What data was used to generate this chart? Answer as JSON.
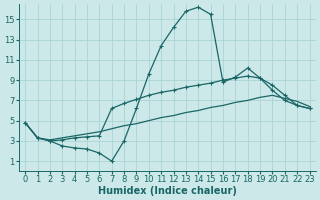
{
  "xlabel": "Humidex (Indice chaleur)",
  "xlim": [
    -0.5,
    23.5
  ],
  "ylim": [
    0,
    16.5
  ],
  "yticks": [
    1,
    3,
    5,
    7,
    9,
    11,
    13,
    15
  ],
  "xticks": [
    0,
    1,
    2,
    3,
    4,
    5,
    6,
    7,
    8,
    9,
    10,
    11,
    12,
    13,
    14,
    15,
    16,
    17,
    18,
    19,
    20,
    21,
    22,
    23
  ],
  "bg_color": "#cce8e8",
  "grid_color": "#aad4d4",
  "line_color": "#1a6666",
  "line1_x": [
    0,
    1,
    2,
    3,
    4,
    5,
    6,
    7,
    8,
    9,
    10,
    11,
    12,
    13,
    14,
    15,
    16,
    17,
    18,
    19,
    20,
    21,
    22,
    23
  ],
  "line1_y": [
    4.8,
    3.3,
    3.0,
    2.5,
    2.3,
    2.2,
    1.8,
    1.0,
    3.0,
    6.2,
    9.6,
    12.4,
    14.2,
    15.8,
    16.2,
    15.5,
    8.8,
    9.3,
    10.2,
    9.2,
    8.0,
    7.0,
    6.5,
    6.2
  ],
  "line2_x": [
    0,
    1,
    2,
    3,
    4,
    5,
    6,
    7,
    8,
    9,
    10,
    11,
    12,
    13,
    14,
    15,
    16,
    17,
    18,
    19,
    20,
    21,
    22,
    23
  ],
  "line2_y": [
    4.8,
    3.3,
    3.0,
    3.1,
    3.3,
    3.4,
    3.5,
    6.2,
    6.7,
    7.1,
    7.5,
    7.8,
    8.0,
    8.3,
    8.5,
    8.7,
    9.0,
    9.2,
    9.4,
    9.2,
    8.5,
    7.5,
    6.5,
    6.2
  ],
  "line3_x": [
    0,
    1,
    2,
    3,
    4,
    5,
    6,
    7,
    8,
    9,
    10,
    11,
    12,
    13,
    14,
    15,
    16,
    17,
    18,
    19,
    20,
    21,
    22,
    23
  ],
  "line3_y": [
    4.8,
    3.3,
    3.1,
    3.3,
    3.5,
    3.7,
    3.9,
    4.2,
    4.5,
    4.7,
    5.0,
    5.3,
    5.5,
    5.8,
    6.0,
    6.3,
    6.5,
    6.8,
    7.0,
    7.3,
    7.5,
    7.2,
    6.9,
    6.4
  ],
  "fontsize_xlabel": 7,
  "tick_fontsize": 6
}
